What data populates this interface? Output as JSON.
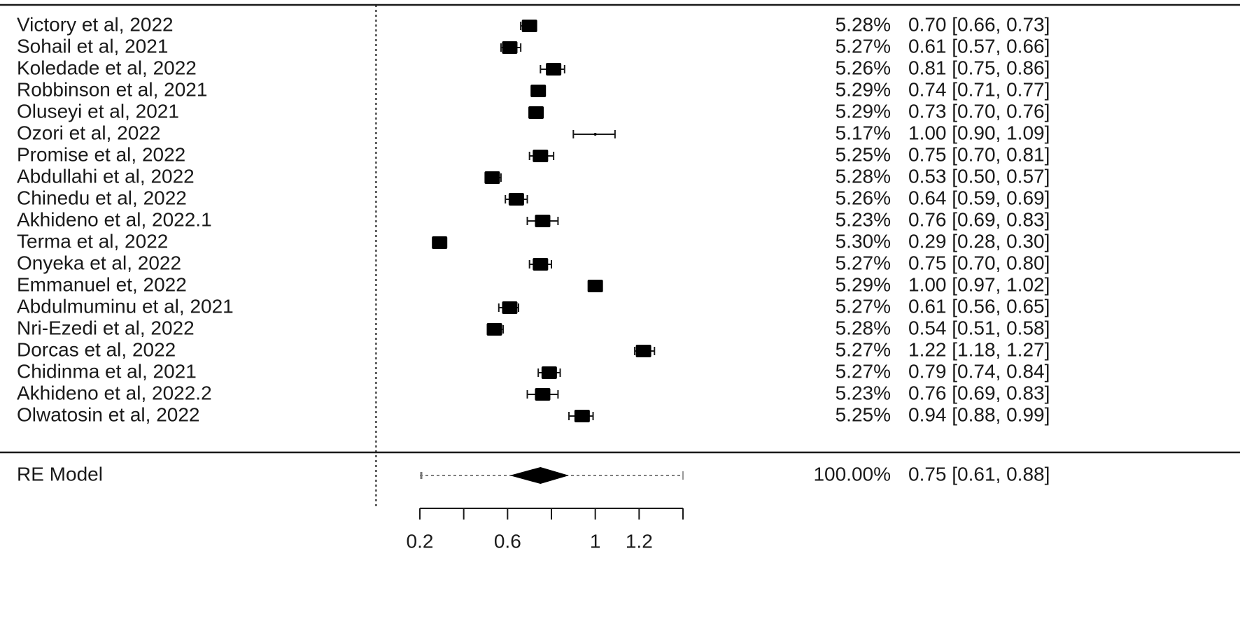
{
  "chart_data": {
    "type": "forest",
    "title": "",
    "xlabel": "",
    "ylabel": "",
    "xlim": [
      0.2,
      1.4
    ],
    "reference_line": 0,
    "ticks": [
      0.2,
      0.4,
      0.6,
      0.8,
      1.0,
      1.2,
      1.4
    ],
    "tick_labels": [
      "0.2",
      "",
      "0.6",
      "",
      "1",
      "1.2",
      ""
    ],
    "studies": [
      {
        "study": "Victory et al, 2022",
        "weight": "5.28%",
        "estimate": 0.7,
        "lower": 0.66,
        "upper": 0.73,
        "ci_text": "0.70 [0.66, 0.73]"
      },
      {
        "study": "Sohail et al, 2021",
        "weight": "5.27%",
        "estimate": 0.61,
        "lower": 0.57,
        "upper": 0.66,
        "ci_text": "0.61 [0.57, 0.66]"
      },
      {
        "study": "Koledade et al,  2022",
        "weight": "5.26%",
        "estimate": 0.81,
        "lower": 0.75,
        "upper": 0.86,
        "ci_text": "0.81 [0.75, 0.86]"
      },
      {
        "study": "Robbinson et al,  2021",
        "weight": "5.29%",
        "estimate": 0.74,
        "lower": 0.71,
        "upper": 0.77,
        "ci_text": "0.74 [0.71, 0.77]"
      },
      {
        "study": "Oluseyi et al,  2021",
        "weight": "5.29%",
        "estimate": 0.73,
        "lower": 0.7,
        "upper": 0.76,
        "ci_text": "0.73 [0.70, 0.76]"
      },
      {
        "study": "Ozori et al, 2022",
        "weight": "5.17%",
        "estimate": 1.0,
        "lower": 0.9,
        "upper": 1.09,
        "ci_text": "1.00 [0.90, 1.09]"
      },
      {
        "study": "Promise et al,  2022",
        "weight": "5.25%",
        "estimate": 0.75,
        "lower": 0.7,
        "upper": 0.81,
        "ci_text": "0.75 [0.70, 0.81]"
      },
      {
        "study": "Abdullahi et al,  2022",
        "weight": "5.28%",
        "estimate": 0.53,
        "lower": 0.5,
        "upper": 0.57,
        "ci_text": "0.53 [0.50, 0.57]"
      },
      {
        "study": "Chinedu et al, 2022",
        "weight": "5.26%",
        "estimate": 0.64,
        "lower": 0.59,
        "upper": 0.69,
        "ci_text": "0.64 [0.59, 0.69]"
      },
      {
        "study": "Akhideno et al,  2022.1",
        "weight": "5.23%",
        "estimate": 0.76,
        "lower": 0.69,
        "upper": 0.83,
        "ci_text": "0.76 [0.69, 0.83]"
      },
      {
        "study": "Terma et al, 2022",
        "weight": "5.30%",
        "estimate": 0.29,
        "lower": 0.28,
        "upper": 0.3,
        "ci_text": "0.29 [0.28, 0.30]"
      },
      {
        "study": "Onyeka et al, 2022",
        "weight": "5.27%",
        "estimate": 0.75,
        "lower": 0.7,
        "upper": 0.8,
        "ci_text": "0.75 [0.70, 0.80]"
      },
      {
        "study": "Emmanuel et, 2022",
        "weight": "5.29%",
        "estimate": 1.0,
        "lower": 0.97,
        "upper": 1.02,
        "ci_text": "1.00 [0.97, 1.02]"
      },
      {
        "study": "Abdulmuminu et al,  2021",
        "weight": "5.27%",
        "estimate": 0.61,
        "lower": 0.56,
        "upper": 0.65,
        "ci_text": "0.61 [0.56, 0.65]"
      },
      {
        "study": "Nri-Ezedi et al,  2022",
        "weight": "5.28%",
        "estimate": 0.54,
        "lower": 0.51,
        "upper": 0.58,
        "ci_text": "0.54 [0.51, 0.58]"
      },
      {
        "study": "Dorcas et al,  2022",
        "weight": "5.27%",
        "estimate": 1.22,
        "lower": 1.18,
        "upper": 1.27,
        "ci_text": "1.22 [1.18, 1.27]"
      },
      {
        "study": "Chidinma et al,  2021",
        "weight": "5.27%",
        "estimate": 0.79,
        "lower": 0.74,
        "upper": 0.84,
        "ci_text": "0.79 [0.74, 0.84]"
      },
      {
        "study": "Akhideno et al,  2022.2",
        "weight": "5.23%",
        "estimate": 0.76,
        "lower": 0.69,
        "upper": 0.83,
        "ci_text": "0.76 [0.69, 0.83]"
      },
      {
        "study": "Olwatosin et al, 2022",
        "weight": "5.25%",
        "estimate": 0.94,
        "lower": 0.88,
        "upper": 0.99,
        "ci_text": "0.94 [0.88, 0.99]"
      }
    ],
    "summary": {
      "label": "RE Model",
      "weight": "100.00%",
      "estimate": 0.75,
      "lower": 0.61,
      "upper": 0.88,
      "pi_lower": 0.2,
      "pi_upper": 1.4,
      "ci_text": "0.75 [0.61, 0.88]"
    }
  }
}
